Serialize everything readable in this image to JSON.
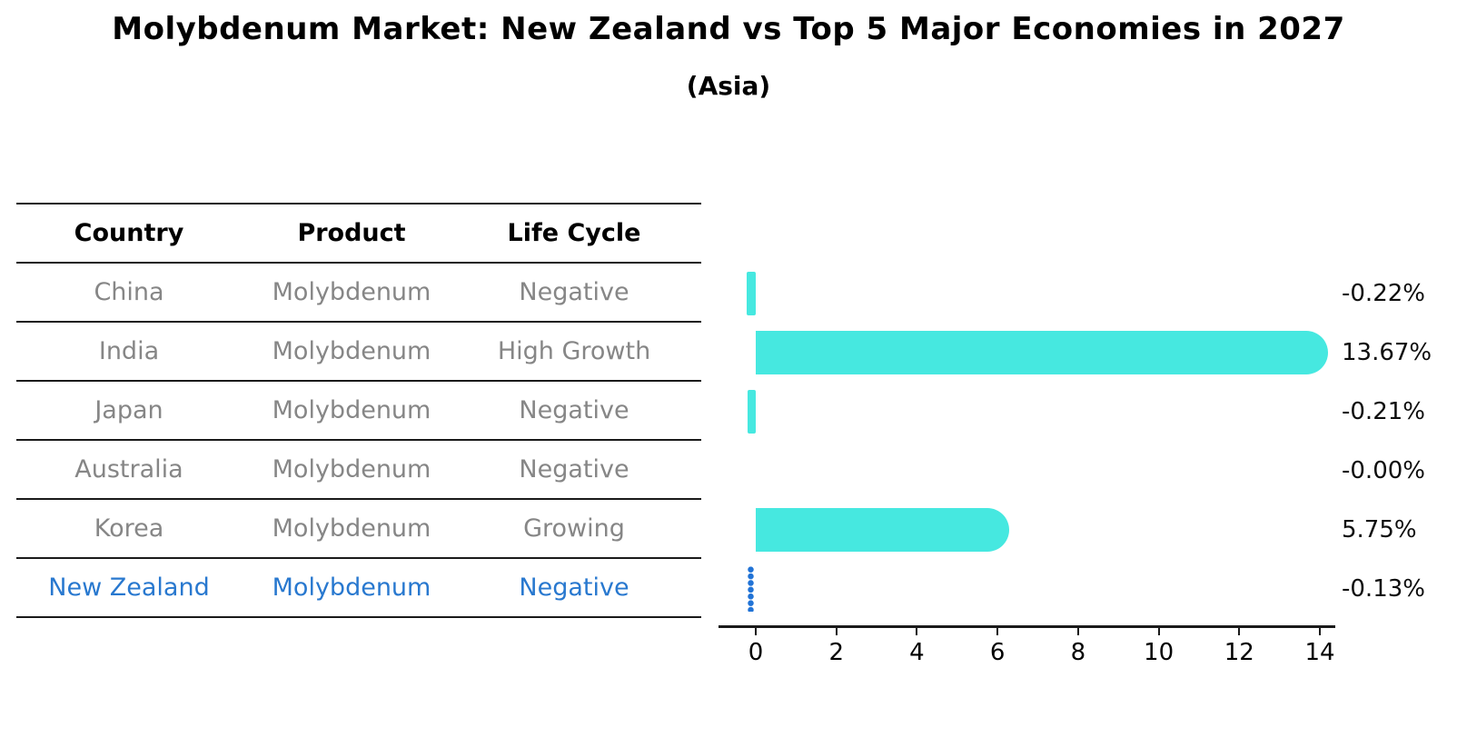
{
  "header": {
    "title": "Molybdenum Market: New Zealand vs Top 5 Major Economies in 2027",
    "subtitle": "(Asia)"
  },
  "table": {
    "columns": [
      "Country",
      "Product",
      "Life Cycle"
    ],
    "rows": [
      {
        "country": "China",
        "product": "Molybdenum",
        "life_cycle": "Negative",
        "highlight": false
      },
      {
        "country": "India",
        "product": "Molybdenum",
        "life_cycle": "High Growth",
        "highlight": false
      },
      {
        "country": "Japan",
        "product": "Molybdenum",
        "life_cycle": "Negative",
        "highlight": false
      },
      {
        "country": "Australia",
        "product": "Molybdenum",
        "life_cycle": "Negative",
        "highlight": false
      },
      {
        "country": "Korea",
        "product": "Molybdenum",
        "life_cycle": "Growing",
        "highlight": false
      },
      {
        "country": "New Zealand",
        "product": "Molybdenum",
        "life_cycle": "Negative",
        "highlight": true
      }
    ]
  },
  "chart_data": {
    "type": "bar",
    "orientation": "horizontal",
    "title": "Molybdenum Market: New Zealand vs Top 5 Major Economies in 2027",
    "subtitle": "(Asia)",
    "categories": [
      "China",
      "India",
      "Japan",
      "Australia",
      "Korea",
      "New Zealand"
    ],
    "values": [
      -0.22,
      13.67,
      -0.21,
      -0.0,
      5.75,
      -0.13
    ],
    "value_labels": [
      "-0.22%",
      "13.67%",
      "-0.21%",
      "-0.00%",
      "5.75%",
      "-0.13%"
    ],
    "x_ticks": [
      0,
      2,
      4,
      6,
      8,
      10,
      12,
      14
    ],
    "xlim": [
      -0.92,
      14.38
    ],
    "grid": false,
    "legend": "none",
    "bar_color": "#46e8e0",
    "highlight_marker_color": "#2173d6",
    "highlight_text_color": "#2878cf",
    "highlight_category": "New Zealand",
    "highlight_marker_style": "vertical-dotted-line"
  }
}
